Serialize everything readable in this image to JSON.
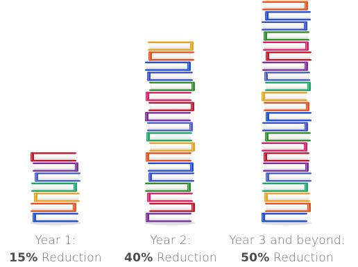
{
  "chart_data": {
    "type": "bar",
    "categories": [
      "Year 1:",
      "Year 2:",
      "Year 3 and beyond:"
    ],
    "values": [
      15,
      40,
      50
    ],
    "unit": "%",
    "value_word": "Reduction",
    "stack_heights_books": [
      7,
      18,
      25
    ]
  },
  "captions": [
    {
      "period": "Year 1:",
      "percent": "15%",
      "word": "Reduction"
    },
    {
      "period": "Year 2:",
      "percent": "40%",
      "word": "Reduction"
    },
    {
      "period": "Year 3 and beyond:",
      "percent": "50%",
      "word": "Reduction"
    }
  ],
  "colors": {
    "page": "#f4f4f2",
    "page_edge": "#d9d9d6",
    "caption_text": "#6f6f6f",
    "spines": [
      "#1e4fd6",
      "#d81f6a",
      "#4b5fc4",
      "#e2531f",
      "#2f8f2f",
      "#7b2fa0",
      "#e8a321",
      "#3a4fd0",
      "#c4172c",
      "#1aa86a"
    ]
  }
}
